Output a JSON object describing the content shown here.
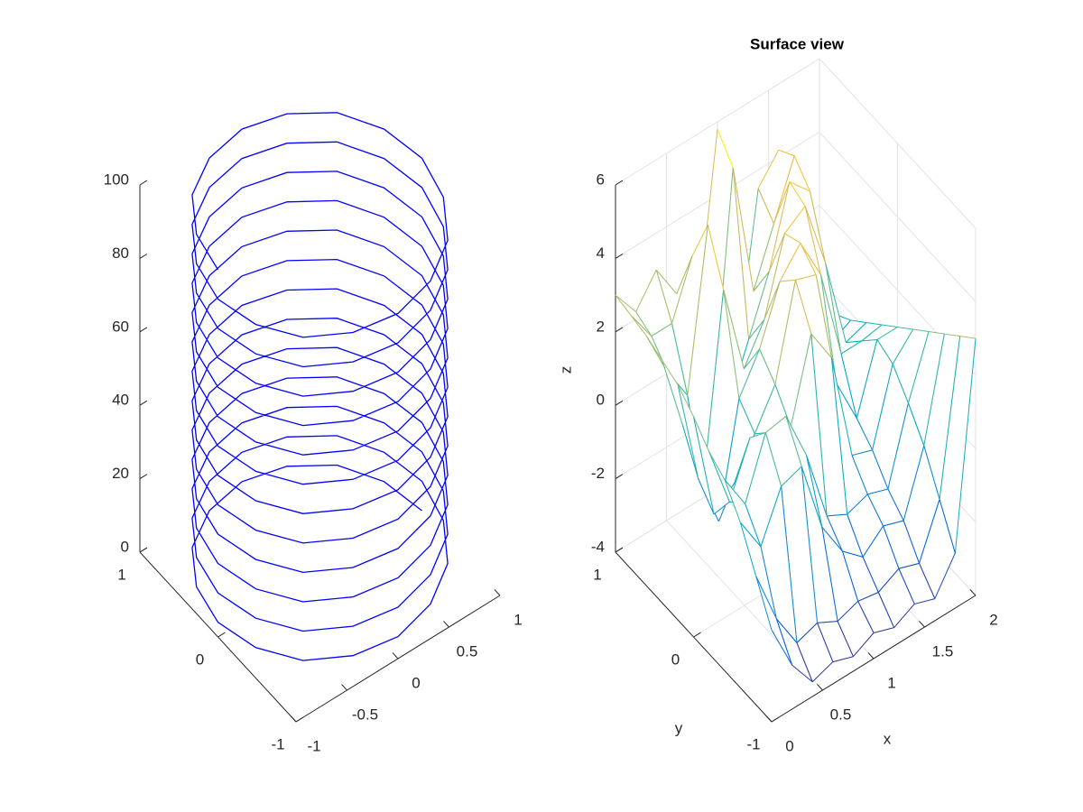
{
  "chart_data": [
    {
      "type": "line3d",
      "xlim": [
        -1,
        1
      ],
      "ylim": [
        -1,
        1
      ],
      "zlim": [
        0,
        100
      ],
      "xticks": [
        -1,
        -0.5,
        0,
        0.5,
        1
      ],
      "yticks": [
        -1,
        0,
        1
      ],
      "zticks": [
        0,
        20,
        40,
        60,
        80,
        100
      ],
      "grid": false,
      "series": [
        {
          "color": "#0000ff",
          "x": [
            1,
            0.92,
            0.71,
            0.38,
            0,
            -0.38,
            -0.71,
            -0.92,
            -1,
            -0.92,
            -0.71,
            -0.38,
            0,
            0.38,
            0.71,
            0.92,
            1,
            0.92,
            0.71,
            0.38,
            0,
            -0.38,
            -0.71,
            -0.92,
            -1,
            -0.92,
            -0.71,
            -0.38,
            0,
            0.38,
            0.71,
            0.92,
            1,
            0.92,
            0.71,
            0.38,
            0,
            -0.38,
            -0.71,
            -0.92,
            -1,
            -0.92,
            -0.71,
            -0.38,
            0,
            0.38,
            0.71,
            0.92,
            1,
            0.92,
            0.71,
            0.38,
            0,
            -0.38,
            -0.71,
            -0.92,
            -1,
            -0.92,
            -0.71,
            -0.38,
            0,
            0.38,
            0.71,
            0.92,
            1,
            0.92,
            0.71,
            0.38,
            0,
            -0.38,
            -0.71,
            -0.92,
            -1,
            -0.92,
            -0.71,
            -0.38,
            0,
            0.38,
            0.71,
            0.92,
            1,
            0.92,
            0.71,
            0.38,
            0,
            -0.38,
            -0.71,
            -0.92,
            -1,
            -0.92,
            -0.71,
            -0.38,
            0,
            0.38,
            0.71,
            0.92,
            1,
            0.92,
            0.71,
            0.38,
            0,
            -0.38,
            -0.71,
            -0.92,
            -1,
            -0.92,
            -0.71,
            -0.38,
            0,
            0.38,
            0.71,
            0.92,
            1,
            0.92,
            0.71,
            0.38,
            0,
            -0.38,
            -0.71,
            -0.92,
            -1,
            -0.92,
            -0.71,
            -0.38,
            0,
            0.38,
            0.71,
            0.92,
            1,
            0.92,
            0.71,
            0.38,
            0,
            -0.38,
            -0.71,
            -0.92,
            -1,
            -0.92,
            -0.71,
            -0.38,
            0,
            0.38,
            0.71,
            0.92,
            1,
            0.92,
            0.71,
            0.38,
            0,
            -0.38,
            -0.71,
            -0.92,
            -1,
            -0.92,
            -0.71,
            -0.38,
            0,
            0.38,
            0.71,
            0.92,
            1,
            0.92,
            0.71,
            0.38,
            0,
            -0.38,
            -0.71,
            -0.92,
            -1,
            -0.92,
            -0.71,
            -0.38,
            0,
            0.38,
            0.71,
            0.92,
            1,
            0.92,
            0.71,
            0.38,
            0,
            -0.38,
            -0.71,
            -0.92,
            -1,
            -0.92,
            -0.71,
            -0.38,
            0,
            0.38,
            0.71,
            0.92,
            1,
            0.92,
            0.71,
            0.38,
            0,
            -0.38,
            -0.71,
            -0.92,
            -1
          ],
          "y": [
            0,
            0.38,
            0.71,
            0.92,
            1,
            0.92,
            0.71,
            0.38,
            0,
            -0.38,
            -0.71,
            -0.92,
            -1,
            -0.92,
            -0.71,
            -0.38,
            0,
            0.38,
            0.71,
            0.92,
            1,
            0.92,
            0.71,
            0.38,
            0,
            -0.38,
            -0.71,
            -0.92,
            -1,
            -0.92,
            -0.71,
            -0.38,
            0,
            0.38,
            0.71,
            0.92,
            1,
            0.92,
            0.71,
            0.38,
            0,
            -0.38,
            -0.71,
            -0.92,
            -1,
            -0.92,
            -0.71,
            -0.38,
            0,
            0.38,
            0.71,
            0.92,
            1,
            0.92,
            0.71,
            0.38,
            0,
            -0.38,
            -0.71,
            -0.92,
            -1,
            -0.92,
            -0.71,
            -0.38,
            0,
            0.38,
            0.71,
            0.92,
            1,
            0.92,
            0.71,
            0.38,
            0,
            -0.38,
            -0.71,
            -0.92,
            -1,
            -0.92,
            -0.71,
            -0.38,
            0,
            0.38,
            0.71,
            0.92,
            1,
            0.92,
            0.71,
            0.38,
            0,
            -0.38,
            -0.71,
            -0.92,
            -1,
            -0.92,
            -0.71,
            -0.38,
            0,
            0.38,
            0.71,
            0.92,
            1,
            0.92,
            0.71,
            0.38,
            0,
            -0.38,
            -0.71,
            -0.92,
            -1,
            -0.92,
            -0.71,
            -0.38,
            0,
            0.38,
            0.71,
            0.92,
            1,
            0.92,
            0.71,
            0.38,
            0,
            -0.38,
            -0.71,
            -0.92,
            -1,
            -0.92,
            -0.71,
            -0.38,
            0,
            0.38,
            0.71,
            0.92,
            1,
            0.92,
            0.71,
            0.38,
            0,
            -0.38,
            -0.71,
            -0.92,
            -1,
            -0.92,
            -0.71,
            -0.38,
            0,
            0.38,
            0.71,
            0.92,
            1,
            0.92,
            0.71,
            0.38,
            0,
            -0.38,
            -0.71,
            -0.92,
            -1,
            -0.92,
            -0.71,
            -0.38,
            0,
            0.38,
            0.71,
            0.92,
            1,
            0.92,
            0.71,
            0.38,
            0,
            -0.38,
            -0.71,
            -0.92,
            -1,
            -0.92,
            -0.71,
            -0.38,
            0,
            0.38,
            0.71,
            0.92,
            1,
            0.92,
            0.71,
            0.38,
            0,
            -0.38,
            -0.71,
            -0.92,
            -1,
            -0.92,
            -0.71,
            -0.38,
            0,
            0.38,
            0.71,
            0.92,
            1,
            0.92,
            0.71,
            0.38,
            0
          ],
          "z": [
            0,
            0.5,
            1,
            1.5,
            2,
            2.5,
            3,
            3.5,
            4,
            4.5,
            5,
            5.5,
            6,
            6.5,
            7,
            7.5,
            8,
            8.5,
            9,
            9.5,
            10,
            10.5,
            11,
            11.5,
            12,
            12.5,
            13,
            13.5,
            14,
            14.5,
            15,
            15.5,
            16,
            16.5,
            17,
            17.5,
            18,
            18.5,
            19,
            19.5,
            20,
            20.5,
            21,
            21.5,
            22,
            22.5,
            23,
            23.5,
            24,
            24.5,
            25,
            25.5,
            26,
            26.5,
            27,
            27.5,
            28,
            28.5,
            29,
            29.5,
            30,
            30.5,
            31,
            31.5,
            32,
            32.5,
            33,
            33.5,
            34,
            34.5,
            35,
            35.5,
            36,
            36.5,
            37,
            37.5,
            38,
            38.5,
            39,
            39.5,
            40,
            40.5,
            41,
            41.5,
            42,
            42.5,
            43,
            43.5,
            44,
            44.5,
            45,
            45.5,
            46,
            46.5,
            47,
            47.5,
            48,
            48.5,
            49,
            49.5,
            50,
            50.5,
            51,
            51.5,
            52,
            52.5,
            53,
            53.5,
            54,
            54.5,
            55,
            55.5,
            56,
            56.5,
            57,
            57.5,
            58,
            58.5,
            59,
            59.5,
            60,
            60.5,
            61,
            61.5,
            62,
            62.5,
            63,
            63.5,
            64,
            64.5,
            65,
            65.5,
            66,
            66.5,
            67,
            67.5,
            68,
            68.5,
            69,
            69.5,
            70,
            70.5,
            71,
            71.5,
            72,
            72.5,
            73,
            73.5,
            74,
            74.5,
            75,
            75.5,
            76,
            76.5,
            77,
            77.5,
            78,
            78.5,
            79,
            79.5,
            80,
            80.5,
            81,
            81.5,
            82,
            82.5,
            83,
            83.5,
            84,
            84.5,
            85,
            85.5,
            86,
            86.5,
            87,
            87.5,
            88,
            88.5,
            89,
            89.5,
            90,
            90.5,
            91,
            91.5,
            92,
            92.5,
            93,
            93.5,
            94,
            94.5,
            95,
            95.5,
            96,
            96.5,
            97,
            97.5,
            98,
            98.5,
            99,
            99.5,
            100
          ]
        }
      ]
    },
    {
      "type": "mesh",
      "title": "Surface view",
      "xlabel": "x",
      "ylabel": "y",
      "zlabel": "z",
      "xlim": [
        0,
        2
      ],
      "ylim": [
        -1,
        1
      ],
      "zlim": [
        -4,
        6
      ],
      "xticks": [
        0,
        0.5,
        1,
        1.5,
        2
      ],
      "yticks": [
        -1,
        0,
        1
      ],
      "zticks": [
        -4,
        -2,
        0,
        2,
        4,
        6
      ],
      "grid": true,
      "colormap": [
        "#352a87",
        "#0363e1",
        "#1485d4",
        "#06a7c6",
        "#38b99e",
        "#92bf73",
        "#d9ba56",
        "#fcce2e",
        "#f9fb0e"
      ],
      "x": [
        0,
        0.2,
        0.4,
        0.6,
        0.8,
        1,
        1.2,
        1.4,
        1.6,
        1.8,
        2
      ],
      "y": [
        -1,
        -0.8,
        -0.6,
        -0.4,
        -0.2,
        0,
        0.2,
        0.4,
        0.6,
        0.8,
        1
      ],
      "z": [
        [
          -1.5,
          -2.8,
          -3.6,
          -3.4,
          -3.6,
          -3.3,
          -3.5,
          -3.2,
          -3.4,
          -2.5,
          3.0
        ],
        [
          -0.5,
          -2.0,
          -3.0,
          -2.8,
          -3.1,
          -2.9,
          -3.0,
          -2.7,
          -2.9,
          -1.5,
          2.6
        ],
        [
          0.5,
          -0.5,
          0.8,
          1.0,
          -1.0,
          -2.0,
          -2.5,
          -2.0,
          -2.2,
          -0.5,
          2.2
        ],
        [
          1.2,
          0.2,
          1.8,
          1.9,
          0.5,
          -1.5,
          -1.8,
          -1.6,
          -1.8,
          0.2,
          1.8
        ],
        [
          1.5,
          -0.2,
          1.2,
          1.0,
          0.8,
          3.0,
          2.0,
          -1.0,
          -1.2,
          0.8,
          1.4
        ],
        [
          2.0,
          -1.0,
          -0.5,
          0.5,
          1.5,
          4.0,
          3.8,
          0.5,
          -0.8,
          1.0,
          1.0
        ],
        [
          2.4,
          -0.5,
          -2.0,
          1.0,
          2.0,
          3.5,
          4.2,
          3.0,
          0.5,
          0.5,
          0.6
        ],
        [
          2.6,
          0.5,
          -1.5,
          3.5,
          1.0,
          2.0,
          4.0,
          4.4,
          2.5,
          0.0,
          0.2
        ],
        [
          2.8,
          1.5,
          0.5,
          4.8,
          -0.5,
          1.0,
          2.5,
          4.6,
          4.0,
          -0.5,
          -0.2
        ],
        [
          2.9,
          2.0,
          2.0,
          3.5,
          -1.0,
          5.2,
          1.5,
          3.0,
          4.5,
          0.0,
          -0.5
        ],
        [
          3.0,
          2.2,
          3.0,
          2.0,
          1.0,
          5.8,
          -0.5,
          3.5,
          4.2,
          1.0,
          -1.0
        ]
      ]
    }
  ]
}
